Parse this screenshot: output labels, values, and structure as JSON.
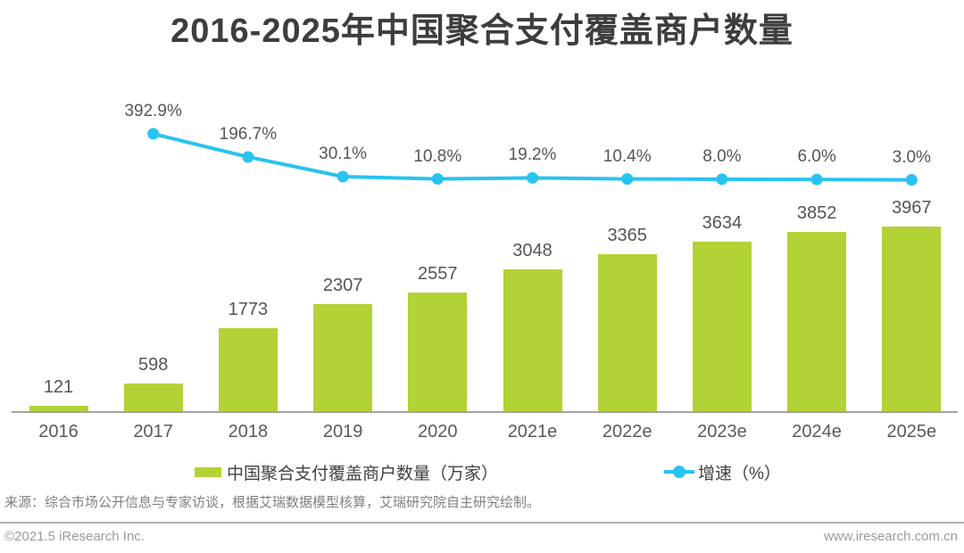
{
  "title": "2016-2025年中国聚合支付覆盖商户数量",
  "chart_data": {
    "type": "bar",
    "title": "2016-2025年中国聚合支付覆盖商户数量",
    "categories": [
      "2016",
      "2017",
      "2018",
      "2019",
      "2020",
      "2021e",
      "2022e",
      "2023e",
      "2024e",
      "2025e"
    ],
    "series": [
      {
        "name": "中国聚合支付覆盖商户数量（万家）",
        "type": "bar",
        "color": "#B2D235",
        "values": [
          121,
          598,
          1773,
          2307,
          2557,
          3048,
          3365,
          3634,
          3852,
          3967
        ]
      },
      {
        "name": "增速（%）",
        "type": "line",
        "color": "#29C3F0",
        "start_category_index": 1,
        "values": [
          392.9,
          196.7,
          30.1,
          10.8,
          19.2,
          10.4,
          8.0,
          6.0,
          3.0
        ],
        "labels": [
          "392.9%",
          "196.7%",
          "30.1%",
          "10.8%",
          "19.2%",
          "10.4%",
          "8.0%",
          "6.0%",
          "3.0%"
        ]
      }
    ],
    "xlabel": "",
    "ylabel": "",
    "grid": false,
    "legend_position": "bottom",
    "y_axis_visible": false,
    "secondary_y_axis_visible": false
  },
  "legend": {
    "bar_label": "中国聚合支付覆盖商户数量（万家）",
    "line_label": "增速（%）"
  },
  "source_note": "来源：综合市场公开信息与专家访谈，根据艾瑞数据模型核算，艾瑞研究院自主研究绘制。",
  "footer": {
    "copyright": "©2021.5 iResearch Inc.",
    "website": "www.iresearch.com.cn"
  },
  "colors": {
    "bar": "#B2D235",
    "line": "#29C3F0",
    "title_text": "#3D3D3D",
    "label_text": "#555555",
    "axis_line": "#A3A3A3"
  }
}
